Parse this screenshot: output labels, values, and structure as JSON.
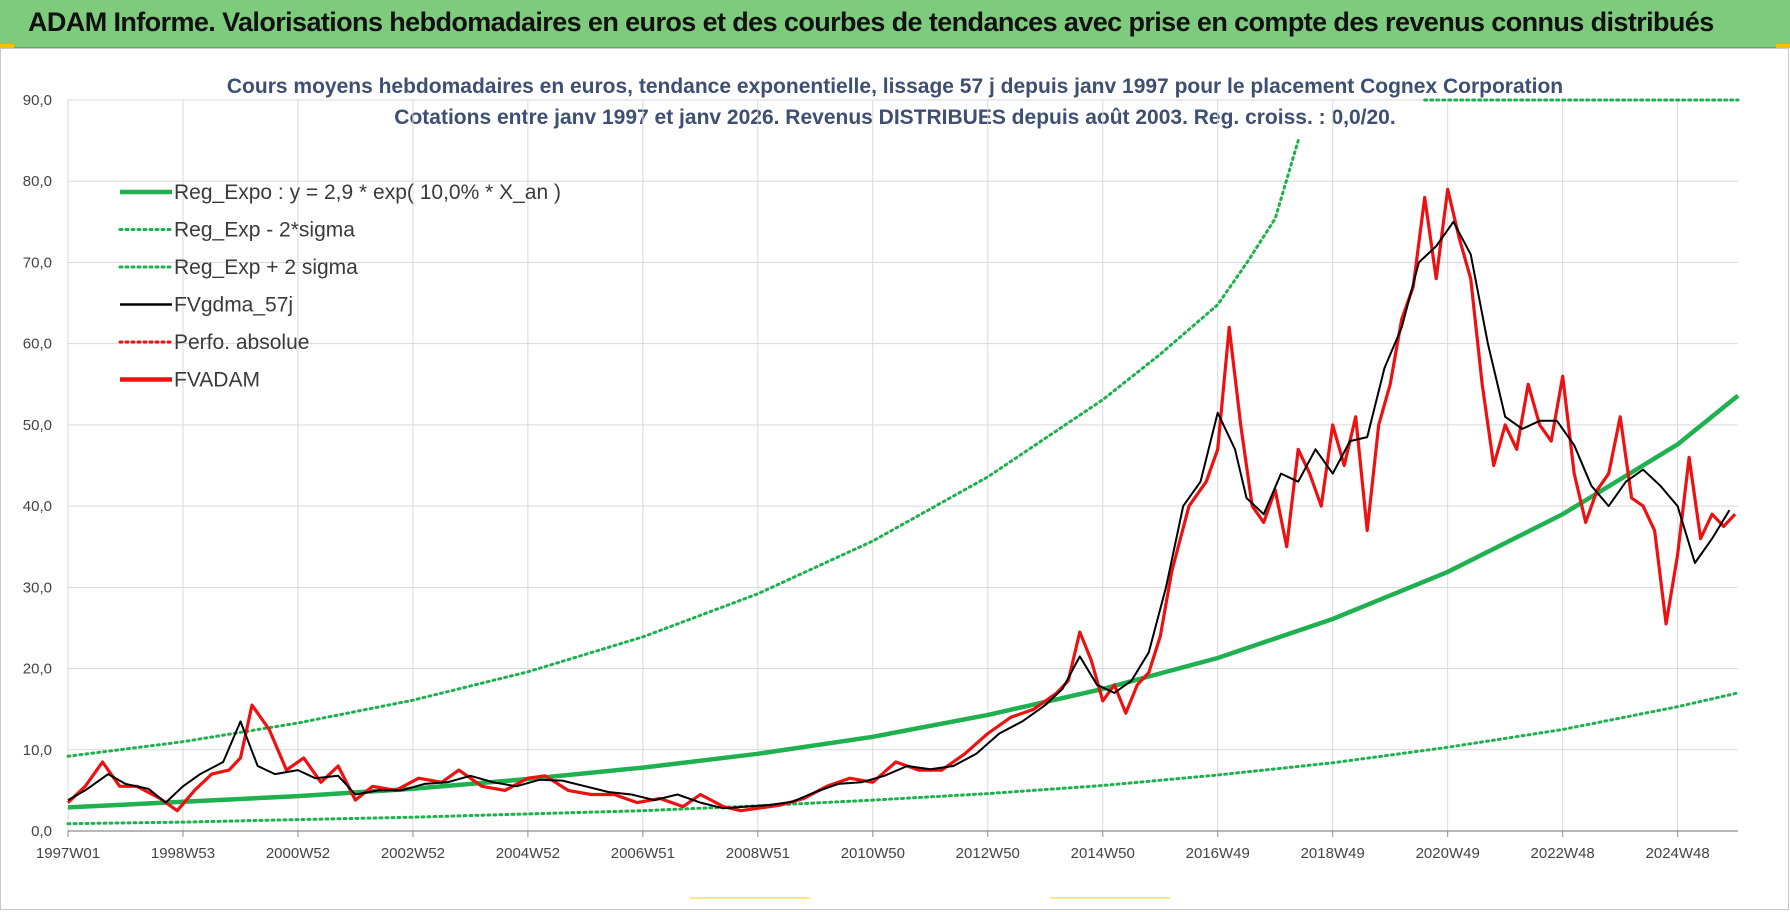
{
  "header": {
    "title": "ADAM Informe. Valorisations hebdomadaires en euros et des courbes de tendances avec prise en compte des revenus connus distribués"
  },
  "colors": {
    "header_bg": "#7ecb7e",
    "trend": "#1fb050",
    "sigma": "#1fb050",
    "smoothed": "#000000",
    "price": "#ee1111",
    "perfo": "#ee1111",
    "title_text": "#3d4f72"
  },
  "chart_data": {
    "type": "line",
    "title": "Cours moyens hebdomadaires en euros, tendance exponentielle, lissage 57 j depuis janv 1997  pour le  placement Cognex Corporation",
    "subtitle": "Cotations entre janv 1997 et janv 2026. Revenus DISTRIBUES depuis août 2003. Reg. croiss. : 0,0/20.",
    "xlabel": "",
    "ylabel": "",
    "x_range": [
      1997.0,
      2026.05
    ],
    "ylim": [
      0,
      90
    ],
    "y_ticks": [
      0,
      10,
      20,
      30,
      40,
      50,
      60,
      70,
      80,
      90
    ],
    "y_tick_labels": [
      "0,0",
      "10,0",
      "20,0",
      "30,0",
      "40,0",
      "50,0",
      "60,0",
      "70,0",
      "80,0",
      "90,0"
    ],
    "x_ticks": [
      1997.0,
      1999.0,
      2001.0,
      2003.0,
      2005.0,
      2007.0,
      2009.0,
      2011.0,
      2013.0,
      2015.0,
      2017.0,
      2019.0,
      2021.0,
      2023.0,
      2025.0
    ],
    "x_tick_labels": [
      "1997W01",
      "1998W53",
      "2000W52",
      "2002W52",
      "2004W52",
      "2006W51",
      "2008W51",
      "2010W50",
      "2012W50",
      "2014W50",
      "2016W49",
      "2018W49",
      "2020W49",
      "2022W48",
      "2024W48"
    ],
    "grid": true,
    "legend_position": "top-left",
    "legend": [
      {
        "key": "reg_expo",
        "label": "Reg_Expo : y = 2,9 * exp( 10,0% *  X_an )",
        "style": "solid-thick",
        "color": "#1fb050"
      },
      {
        "key": "reg_minus",
        "label": "Reg_Exp - 2*sigma",
        "style": "dotted",
        "color": "#1fb050"
      },
      {
        "key": "reg_plus",
        "label": "Reg_Exp + 2 sigma",
        "style": "dotted",
        "color": "#1fb050"
      },
      {
        "key": "fvgdma",
        "label": "FVgdma_57j",
        "style": "solid",
        "color": "#000000"
      },
      {
        "key": "perfo",
        "label": "Perfo. absolue",
        "style": "dotted",
        "color": "#ee1111"
      },
      {
        "key": "fvadam",
        "label": "FVADAM",
        "style": "solid-thick",
        "color": "#ee1111"
      }
    ],
    "series": [
      {
        "name": "Reg_Expo",
        "x": [
          1997.0,
          1999.0,
          2001.0,
          2003.0,
          2005.0,
          2007.0,
          2009.0,
          2011.0,
          2013.0,
          2015.0,
          2017.0,
          2019.0,
          2021.0,
          2023.0,
          2025.0,
          2026.05
        ],
        "values": [
          2.9,
          3.6,
          4.3,
          5.2,
          6.4,
          7.8,
          9.5,
          11.6,
          14.3,
          17.5,
          21.3,
          26.1,
          31.9,
          39.0,
          47.6,
          53.6
        ]
      },
      {
        "name": "Reg_Exp - 2*sigma",
        "x": [
          1997.0,
          1999.0,
          2001.0,
          2003.0,
          2005.0,
          2007.0,
          2009.0,
          2011.0,
          2013.0,
          2015.0,
          2017.0,
          2019.0,
          2021.0,
          2023.0,
          2025.0,
          2026.05
        ],
        "values": [
          0.9,
          1.1,
          1.4,
          1.7,
          2.1,
          2.5,
          3.1,
          3.8,
          4.6,
          5.6,
          6.9,
          8.4,
          10.3,
          12.5,
          15.3,
          17.0
        ]
      },
      {
        "name": "Reg_Exp + 2 sigma",
        "x": [
          1997.0,
          1999.0,
          2001.0,
          2003.0,
          2005.0,
          2007.0,
          2009.0,
          2011.0,
          2013.0,
          2015.0,
          2016.0,
          2017.0,
          2017.5,
          2018.0,
          2018.4
        ],
        "values": [
          9.2,
          11.0,
          13.3,
          16.1,
          19.6,
          23.9,
          29.2,
          35.7,
          43.6,
          53.1,
          58.7,
          64.8,
          69.9,
          75.4,
          85.0
        ]
      },
      {
        "name": "Reg_Exp + 2 sigma (clipped)",
        "x": [
          2020.6,
          2026.05
        ],
        "values": [
          90.0,
          90.0
        ]
      },
      {
        "name": "FVgdma_57j",
        "x": [
          1997.0,
          1997.3,
          1997.7,
          1998.0,
          1998.4,
          1998.7,
          1999.0,
          1999.3,
          1999.7,
          2000.0,
          2000.3,
          2000.6,
          2001.0,
          2001.3,
          2001.7,
          2002.0,
          2002.4,
          2002.8,
          2003.2,
          2003.6,
          2004.0,
          2004.4,
          2004.8,
          2005.2,
          2005.6,
          2006.0,
          2006.4,
          2006.8,
          2007.2,
          2007.6,
          2008.0,
          2008.4,
          2008.8,
          2009.2,
          2009.6,
          2010.0,
          2010.4,
          2010.8,
          2011.2,
          2011.6,
          2012.0,
          2012.4,
          2012.8,
          2013.2,
          2013.6,
          2014.0,
          2014.3,
          2014.6,
          2014.9,
          2015.2,
          2015.5,
          2015.8,
          2016.1,
          2016.4,
          2016.7,
          2017.0,
          2017.3,
          2017.5,
          2017.8,
          2018.1,
          2018.4,
          2018.7,
          2019.0,
          2019.3,
          2019.6,
          2019.9,
          2020.2,
          2020.5,
          2020.8,
          2021.1,
          2021.4,
          2021.7,
          2022.0,
          2022.3,
          2022.6,
          2022.9,
          2023.2,
          2023.5,
          2023.8,
          2024.1,
          2024.4,
          2024.7,
          2025.0,
          2025.3,
          2025.6,
          2025.9
        ],
        "values": [
          3.8,
          5.0,
          7.0,
          5.8,
          5.2,
          3.5,
          5.5,
          7.0,
          8.5,
          13.5,
          8.0,
          7.0,
          7.5,
          6.5,
          6.8,
          4.5,
          5.0,
          5.0,
          5.8,
          6.0,
          6.8,
          6.0,
          5.5,
          6.3,
          6.2,
          5.5,
          4.8,
          4.5,
          3.8,
          4.5,
          3.5,
          2.8,
          3.0,
          3.2,
          3.6,
          4.8,
          5.8,
          6.0,
          6.8,
          8.0,
          7.6,
          8.0,
          9.5,
          12.0,
          13.5,
          15.5,
          17.5,
          21.5,
          18.0,
          17.0,
          18.5,
          22.0,
          30.0,
          40.0,
          43.0,
          51.5,
          47.0,
          41.0,
          39.0,
          44.0,
          43.0,
          47.0,
          44.0,
          48.0,
          48.5,
          57.0,
          62.0,
          70.0,
          72.0,
          75.0,
          71.0,
          60.0,
          51.0,
          49.5,
          50.5,
          50.5,
          47.5,
          42.5,
          40.0,
          43.0,
          44.5,
          42.5,
          40.0,
          33.0,
          36.0,
          39.5
        ]
      },
      {
        "name": "FVADAM",
        "x": [
          1997.0,
          1997.3,
          1997.6,
          1997.9,
          1998.2,
          1998.6,
          1998.9,
          1999.2,
          1999.5,
          1999.8,
          2000.0,
          2000.2,
          2000.5,
          2000.8,
          2001.1,
          2001.4,
          2001.7,
          2002.0,
          2002.3,
          2002.7,
          2003.1,
          2003.5,
          2003.8,
          2004.2,
          2004.6,
          2005.0,
          2005.3,
          2005.7,
          2006.1,
          2006.5,
          2006.9,
          2007.3,
          2007.7,
          2008.0,
          2008.4,
          2008.7,
          2009.0,
          2009.4,
          2009.8,
          2010.2,
          2010.6,
          2011.0,
          2011.4,
          2011.8,
          2012.2,
          2012.6,
          2013.0,
          2013.4,
          2013.8,
          2014.2,
          2014.4,
          2014.6,
          2014.8,
          2015.0,
          2015.2,
          2015.4,
          2015.6,
          2015.8,
          2016.0,
          2016.2,
          2016.5,
          2016.8,
          2017.0,
          2017.2,
          2017.4,
          2017.6,
          2017.8,
          2018.0,
          2018.2,
          2018.4,
          2018.6,
          2018.8,
          2019.0,
          2019.2,
          2019.4,
          2019.6,
          2019.8,
          2020.0,
          2020.2,
          2020.4,
          2020.6,
          2020.8,
          2021.0,
          2021.2,
          2021.4,
          2021.6,
          2021.8,
          2022.0,
          2022.2,
          2022.4,
          2022.6,
          2022.8,
          2023.0,
          2023.2,
          2023.4,
          2023.6,
          2023.8,
          2024.0,
          2024.2,
          2024.4,
          2024.6,
          2024.8,
          2025.0,
          2025.2,
          2025.4,
          2025.6,
          2025.8,
          2026.0
        ],
        "values": [
          3.5,
          5.5,
          8.5,
          5.5,
          5.5,
          4.0,
          2.5,
          5.0,
          7.0,
          7.5,
          9.0,
          15.5,
          12.5,
          7.5,
          9.0,
          6.0,
          8.0,
          3.8,
          5.5,
          5.0,
          6.5,
          6.0,
          7.5,
          5.5,
          5.0,
          6.5,
          6.8,
          5.0,
          4.5,
          4.5,
          3.5,
          4.0,
          3.0,
          4.5,
          3.0,
          2.5,
          2.8,
          3.2,
          4.0,
          5.5,
          6.5,
          6.0,
          8.5,
          7.5,
          7.5,
          9.5,
          12.0,
          14.0,
          15.0,
          17.0,
          18.5,
          24.5,
          21.0,
          16.0,
          18.0,
          14.5,
          18.0,
          19.5,
          24.0,
          32.0,
          40.0,
          43.0,
          47.0,
          62.0,
          50.0,
          40.0,
          38.0,
          42.0,
          35.0,
          47.0,
          44.0,
          40.0,
          50.0,
          45.0,
          51.0,
          37.0,
          50.0,
          55.0,
          63.0,
          67.0,
          78.0,
          68.0,
          79.0,
          73.0,
          68.0,
          55.0,
          45.0,
          50.0,
          47.0,
          55.0,
          50.0,
          48.0,
          56.0,
          44.0,
          38.0,
          42.0,
          44.0,
          51.0,
          41.0,
          40.0,
          37.0,
          25.5,
          34.0,
          46.0,
          36.0,
          39.0,
          37.5,
          39.0
        ]
      }
    ]
  }
}
